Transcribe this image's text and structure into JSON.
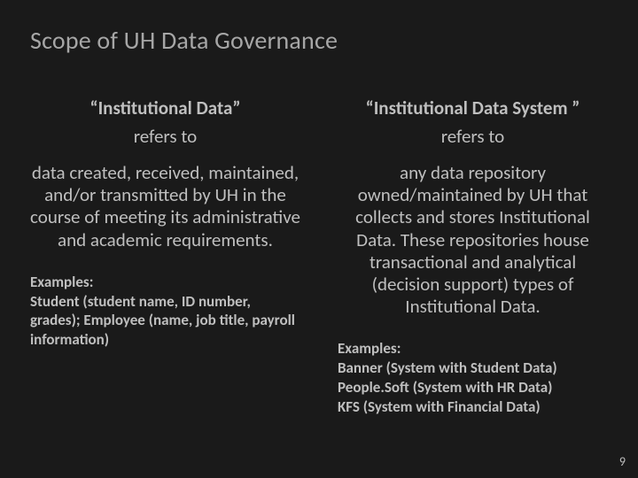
{
  "background_color": "#1a1a1a",
  "text_color": "#bfbfbf",
  "title_color": "#a6a6a6",
  "title": "Scope of UH Data Governance",
  "title_fontsize": 28,
  "body_fontsize": 21,
  "examples_fontsize": 17,
  "left": {
    "term": "“Institutional Data”",
    "refers": "refers to",
    "definition": "data created, received, maintained, and/or transmitted by UH in the course of meeting its administrative and academic requirements.",
    "examples_label": "Examples:",
    "examples_body": "Student (student name, ID number, grades); Employee (name, job title, payroll information)"
  },
  "right": {
    "term": "“Institutional Data System ”",
    "refers": "refers to",
    "definition": "any data repository owned/maintained by UH that collects and stores Institutional Data. These repositories house transactional and analytical (decision support) types of Institutional Data.",
    "examples_label": "Examples:",
    "examples_line1": "Banner (System with Student Data)",
    "examples_line2": "People.Soft (System with HR Data)",
    "examples_line3": "KFS (System with Financial Data)"
  },
  "page_number": "9"
}
